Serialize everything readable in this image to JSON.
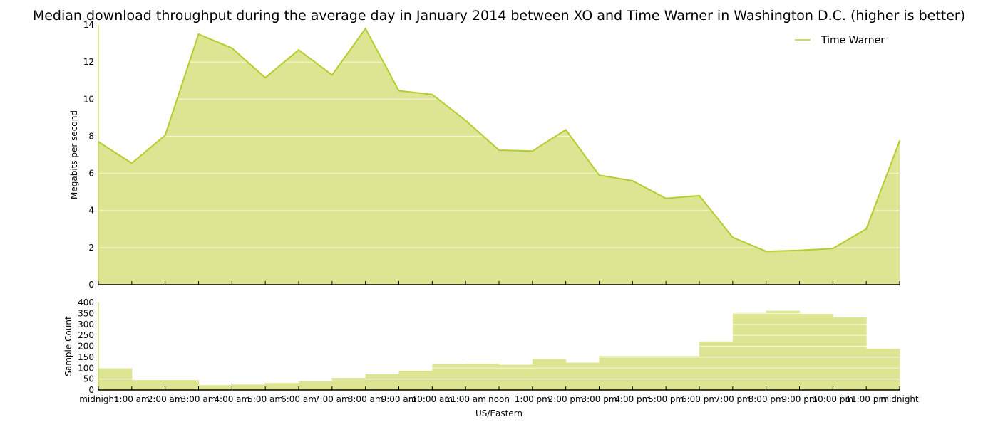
{
  "title": "Median download throughput during the average day in January 2014 between XO and Time Warner in Washington D.C. (higher is better)",
  "chart_data": [
    {
      "type": "area",
      "ylabel": "Megabits per second",
      "ylim": [
        0,
        14
      ],
      "yticks": [
        "0",
        "2",
        "4",
        "6",
        "8",
        "10",
        "12",
        "14"
      ],
      "grid": true,
      "legend_position": "top-right",
      "color": "#b5cc2e",
      "fill_color": "#dde592",
      "series": [
        {
          "name": "Time Warner",
          "x": [
            "midnight",
            "1:00 am",
            "2:00 am",
            "3:00 am",
            "4:00 am",
            "5:00 am",
            "6:00 am",
            "7:00 am",
            "8:00 am",
            "9:00 am",
            "10:00 am",
            "11:00 am",
            "noon",
            "1:00 pm",
            "2:00 pm",
            "3:00 pm",
            "4:00 pm",
            "5:00 pm",
            "6:00 pm",
            "7:00 pm",
            "8:00 pm",
            "9:00 pm",
            "10:00 pm",
            "11:00 pm",
            "midnight"
          ],
          "values": [
            7.7,
            6.55,
            8.05,
            13.5,
            12.75,
            11.15,
            12.65,
            11.3,
            13.8,
            10.45,
            10.25,
            8.85,
            7.25,
            7.2,
            8.35,
            5.9,
            5.6,
            4.65,
            4.8,
            2.55,
            1.8,
            1.85,
            1.95,
            3.0,
            7.75
          ]
        }
      ]
    },
    {
      "type": "bar",
      "ylabel": "Sample Count",
      "xlabel": "US/Eastern",
      "ylim": [
        0,
        400
      ],
      "yticks": [
        "0",
        "50",
        "100",
        "150",
        "200",
        "250",
        "300",
        "350",
        "400"
      ],
      "grid": true,
      "color": "#dde592",
      "categories": [
        "midnight",
        "1:00 am",
        "2:00 am",
        "3:00 am",
        "4:00 am",
        "5:00 am",
        "6:00 am",
        "7:00 am",
        "8:00 am",
        "9:00 am",
        "10:00 am",
        "11:00 am",
        "noon",
        "1:00 pm",
        "2:00 pm",
        "3:00 pm",
        "4:00 pm",
        "5:00 pm",
        "6:00 pm",
        "7:00 pm",
        "8:00 pm",
        "9:00 pm",
        "10:00 pm",
        "11:00 pm"
      ],
      "values": [
        100,
        45,
        45,
        22,
        25,
        32,
        40,
        55,
        72,
        88,
        118,
        120,
        115,
        142,
        125,
        155,
        155,
        155,
        222,
        352,
        362,
        348,
        332,
        188
      ],
      "xtick_labels": [
        "midnight",
        "1:00 am",
        "2:00 am",
        "3:00 am",
        "4:00 am",
        "5:00 am",
        "6:00 am",
        "7:00 am",
        "8:00 am",
        "9:00 am",
        "10:00 am",
        "11:00 am",
        "noon",
        "1:00 pm",
        "2:00 pm",
        "3:00 pm",
        "4:00 pm",
        "5:00 pm",
        "6:00 pm",
        "7:00 pm",
        "8:00 pm",
        "9:00 pm",
        "10:00 pm",
        "11:00 pm",
        "midnight"
      ]
    }
  ]
}
